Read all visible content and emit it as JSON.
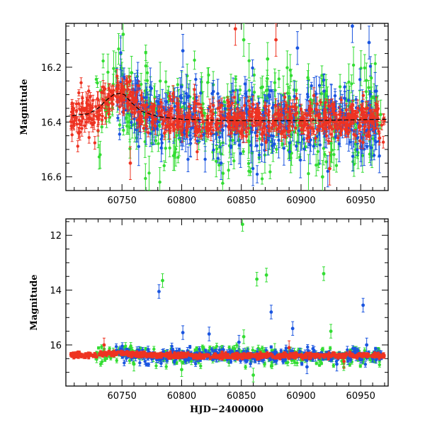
{
  "chart_data": [
    {
      "type": "scatter",
      "title": "",
      "xlabel": "",
      "ylabel": "Magnitude",
      "xlim": [
        60703,
        60973
      ],
      "ylim": [
        16.65,
        16.04
      ],
      "y_inverted": true,
      "xticks": [
        60750,
        60800,
        60850,
        60900,
        60950
      ],
      "xticklabels": [
        "60750",
        "60800",
        "60850",
        "60900",
        "60950"
      ],
      "xticklabels_visible": true,
      "yticks": [
        16.2,
        16.4,
        16.6
      ],
      "yticklabels": [
        "16.2",
        "16.4",
        "16.6"
      ],
      "error_bars": true,
      "fit_curve": {
        "name": "model",
        "color": "#000000",
        "x": [
          60703,
          60712,
          60722,
          60730,
          60737,
          60743,
          60748,
          60752,
          60758,
          60766,
          60780,
          60800,
          60840,
          60900,
          60970
        ],
        "y": [
          16.38,
          16.375,
          16.37,
          16.35,
          16.32,
          16.3,
          16.295,
          16.3,
          16.33,
          16.36,
          16.38,
          16.39,
          16.395,
          16.395,
          16.39
        ]
      },
      "series": [
        {
          "name": "green",
          "color": "#33dd33",
          "x_range": [
            60728,
            60968
          ],
          "scatter": 0.09,
          "outliers": [
            [
              60751,
              16.08
            ],
            [
              60758,
              16.22
            ],
            [
              60852,
              16.1
            ],
            [
              60872,
              16.17
            ],
            [
              60918,
              16.6
            ]
          ]
        },
        {
          "name": "blue",
          "color": "#1a55e0",
          "x_range": [
            60745,
            60968
          ],
          "scatter": 0.07,
          "outliers": [
            [
              60801,
              16.14
            ],
            [
              60833,
              16.55
            ],
            [
              60897,
              16.13
            ],
            [
              60943,
              16.05
            ],
            [
              60957,
              16.11
            ]
          ]
        },
        {
          "name": "red",
          "color": "#ee3322",
          "x_range": [
            60707,
            60970
          ],
          "scatter": 0.035,
          "outliers": [
            [
              60720,
              16.35
            ],
            [
              60757,
              16.55
            ],
            [
              60845,
              16.06
            ],
            [
              60879,
              16.1
            ],
            [
              60924,
              16.57
            ]
          ]
        }
      ]
    },
    {
      "type": "scatter",
      "title": "",
      "xlabel": "HJD−2400000",
      "ylabel": "Magnitude",
      "xlim": [
        60703,
        60973
      ],
      "ylim": [
        17.5,
        11.4
      ],
      "y_inverted": true,
      "xticks": [
        60750,
        60800,
        60850,
        60900,
        60950
      ],
      "xticklabels": [
        "60750",
        "60800",
        "60850",
        "60900",
        "60950"
      ],
      "xticklabels_visible": true,
      "yticks": [
        12,
        14,
        16
      ],
      "yticklabels": [
        "12",
        "14",
        "16"
      ],
      "error_bars": true,
      "series": [
        {
          "name": "green",
          "color": "#33dd33",
          "x_range": [
            60728,
            60968
          ],
          "scatter": 0.25,
          "outliers": [
            [
              60784,
              13.65
            ],
            [
              60851,
              11.6
            ],
            [
              60863,
              13.6
            ],
            [
              60871,
              13.45
            ],
            [
              60919,
              13.4
            ],
            [
              60852,
              15.7
            ],
            [
              60878,
              16.2
            ],
            [
              60925,
              15.5
            ],
            [
              60800,
              16.9
            ],
            [
              60860,
              17.1
            ],
            [
              60760,
              16.7
            ]
          ]
        },
        {
          "name": "blue",
          "color": "#1a55e0",
          "x_range": [
            60745,
            60968
          ],
          "scatter": 0.2,
          "outliers": [
            [
              60781,
              14.05
            ],
            [
              60875,
              14.8
            ],
            [
              60801,
              15.55
            ],
            [
              60823,
              15.6
            ],
            [
              60848,
              15.9
            ],
            [
              60893,
              15.4
            ],
            [
              60952,
              14.55
            ],
            [
              60955,
              16.0
            ],
            [
              60905,
              16.8
            ],
            [
              60930,
              16.7
            ]
          ]
        },
        {
          "name": "red",
          "color": "#ee3322",
          "x_range": [
            60707,
            60970
          ],
          "scatter": 0.07,
          "outliers": [
            [
              60735,
              16.0
            ],
            [
              60890,
              16.1
            ],
            [
              60936,
              16.6
            ]
          ]
        }
      ]
    }
  ]
}
